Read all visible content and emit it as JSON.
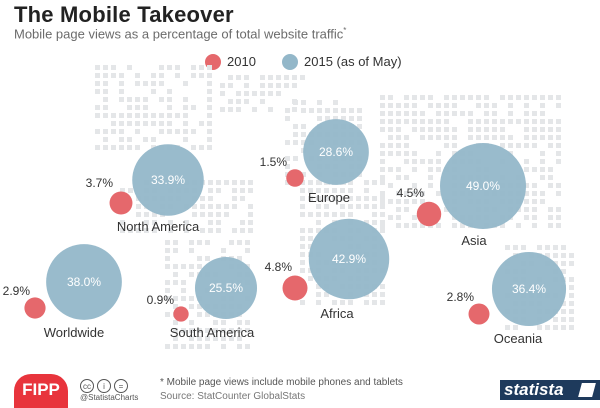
{
  "header": {
    "title": "The Mobile Takeover",
    "subtitle": "Mobile page views as a percentage of total website traffic",
    "subtitle_mark": "*"
  },
  "colors": {
    "series_2010": "#e5686c",
    "series_2015": "#93b7c9",
    "map_dots": "#e4e6e8",
    "text": "#333333"
  },
  "chart_data": {
    "type": "bubble",
    "title": "The Mobile Takeover",
    "legend": {
      "placement": "top-center"
    },
    "series": [
      {
        "name": "2010",
        "unit": "%"
      },
      {
        "name": "2015 (as of May)",
        "unit": "%"
      }
    ],
    "regions": [
      {
        "name": "North America",
        "v2010": 3.7,
        "v2015": 33.9,
        "label2010": "3.7%",
        "label2015": "33.9%"
      },
      {
        "name": "Europe",
        "v2010": 1.5,
        "v2015": 28.6,
        "label2010": "1.5%",
        "label2015": "28.6%"
      },
      {
        "name": "Asia",
        "v2010": 4.5,
        "v2015": 49.0,
        "label2010": "4.5%",
        "label2015": "49.0%"
      },
      {
        "name": "Worldwide",
        "v2010": 2.9,
        "v2015": 38.0,
        "label2010": "2.9%",
        "label2015": "38.0%"
      },
      {
        "name": "South America",
        "v2010": 0.9,
        "v2015": 25.5,
        "label2010": "0.9%",
        "label2015": "25.5%"
      },
      {
        "name": "Africa",
        "v2010": 4.8,
        "v2015": 42.9,
        "label2010": "4.8%",
        "label2015": "42.9%"
      },
      {
        "name": "Oceania",
        "v2010": 2.8,
        "v2015": 36.4,
        "label2010": "2.8%",
        "label2015": "36.4%"
      }
    ]
  },
  "footer": {
    "footnote": "* Mobile page views include mobile phones and tablets",
    "source": "Source: StatCounter GlobalStats",
    "fipp_logo": "FIPP",
    "handle": "@StatistaCharts",
    "statista_logo": "statista",
    "cc_icons": [
      "cc",
      "i",
      "="
    ]
  }
}
